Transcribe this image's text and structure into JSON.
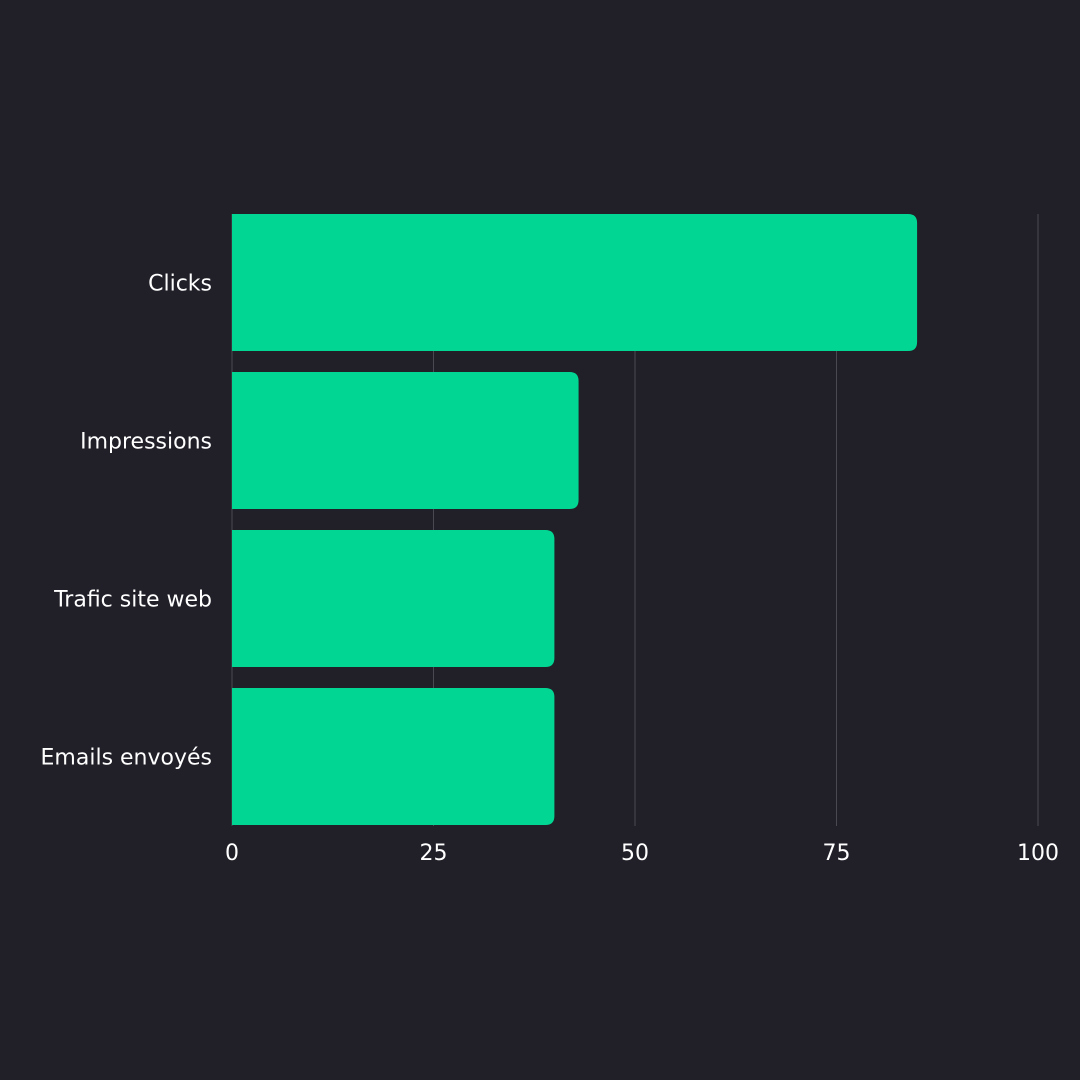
{
  "chart_data": {
    "type": "bar",
    "orientation": "horizontal",
    "title": "",
    "xlabel": "",
    "ylabel": "",
    "categories": [
      "Clicks",
      "Impressions",
      "Trafic site web",
      "Emails envoyés"
    ],
    "values": [
      85,
      43,
      40,
      40
    ],
    "xlim": [
      0,
      100
    ],
    "x_ticks": [
      "0",
      "25",
      "50",
      "75",
      "100"
    ],
    "grid": "vertical",
    "legend": "none",
    "colors": {
      "background": "#211f28",
      "bar": "#02d693",
      "grid": "#4a4852",
      "text": "#ffffff"
    }
  }
}
